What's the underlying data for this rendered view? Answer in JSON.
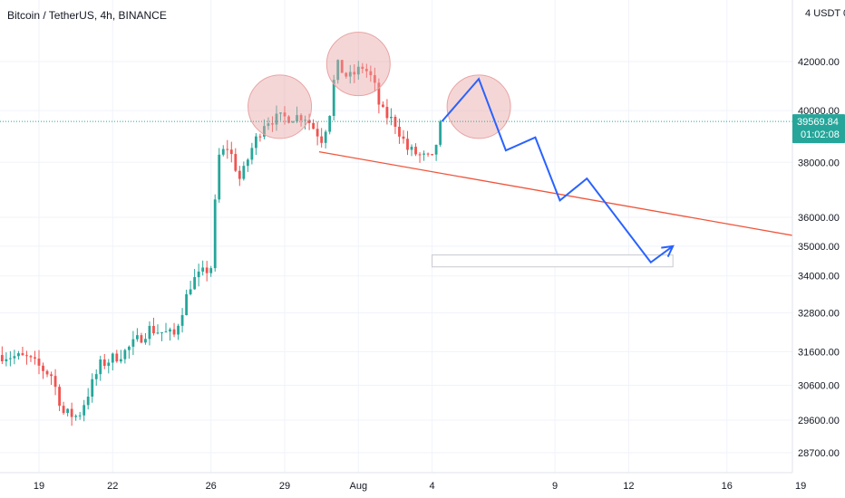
{
  "header": {
    "symbol_title": "Bitcoin / TetherUS, 4h, BINANCE",
    "currency_label": "USDT"
  },
  "price_tag": {
    "last_price": "39569.84",
    "countdown": "01:02:08"
  },
  "colors": {
    "bull": "#26a69a",
    "bear": "#ef5350",
    "trendline": "#f0553b",
    "projection": "#2962ff",
    "highlight": "#e8a3a3",
    "grid": "#f0f3fa"
  },
  "chart_data": {
    "type": "candlestick",
    "title": "Bitcoin / TetherUS, 4h, BINANCE",
    "y_ticks": [
      {
        "value": 42000,
        "label": "42000.00"
      },
      {
        "value": 40000,
        "label": "40000.00"
      },
      {
        "value": 38000,
        "label": "38000.00"
      },
      {
        "value": 36000,
        "label": "36000.00"
      },
      {
        "value": 35000,
        "label": "35000.00"
      },
      {
        "value": 34000,
        "label": "34000.00"
      },
      {
        "value": 32800,
        "label": "32800.00"
      },
      {
        "value": 31600,
        "label": "31600.00"
      },
      {
        "value": 30600,
        "label": "30600.00"
      },
      {
        "value": 29600,
        "label": "29600.00"
      },
      {
        "value": 28700,
        "label": "28700.00"
      }
    ],
    "x_ticks": [
      {
        "day": 19,
        "label": "19"
      },
      {
        "day": 22,
        "label": "22"
      },
      {
        "day": 26,
        "label": "26"
      },
      {
        "day": 29,
        "label": "29"
      },
      {
        "day": 32,
        "label": "Aug"
      },
      {
        "day": 35,
        "label": "4"
      },
      {
        "day": 40,
        "label": "9"
      },
      {
        "day": 43,
        "label": "12"
      },
      {
        "day": 47,
        "label": "16"
      },
      {
        "day": 50,
        "label": "19"
      }
    ],
    "anchors": [
      {
        "day": 17.5,
        "price": 31500
      },
      {
        "day": 18.5,
        "price": 31400
      },
      {
        "day": 19.5,
        "price": 30900
      },
      {
        "day": 20.0,
        "price": 29800
      },
      {
        "day": 20.6,
        "price": 29700
      },
      {
        "day": 21.5,
        "price": 31200
      },
      {
        "day": 22.5,
        "price": 31600
      },
      {
        "day": 23.5,
        "price": 32300
      },
      {
        "day": 24.5,
        "price": 32100
      },
      {
        "day": 25.2,
        "price": 33800
      },
      {
        "day": 26.0,
        "price": 34300
      },
      {
        "day": 26.1,
        "price": 35600
      },
      {
        "day": 26.3,
        "price": 38200
      },
      {
        "day": 26.7,
        "price": 38600
      },
      {
        "day": 27.2,
        "price": 37300
      },
      {
        "day": 27.6,
        "price": 38400
      },
      {
        "day": 28.2,
        "price": 39600
      },
      {
        "day": 28.8,
        "price": 39700
      },
      {
        "day": 29.8,
        "price": 39800
      },
      {
        "day": 30.5,
        "price": 38900
      },
      {
        "day": 30.8,
        "price": 39700
      },
      {
        "day": 31.1,
        "price": 41900
      },
      {
        "day": 31.6,
        "price": 41300
      },
      {
        "day": 32.2,
        "price": 41800
      },
      {
        "day": 32.6,
        "price": 41200
      },
      {
        "day": 32.9,
        "price": 40000
      },
      {
        "day": 33.5,
        "price": 39500
      },
      {
        "day": 34.0,
        "price": 38500
      },
      {
        "day": 34.6,
        "price": 38200
      },
      {
        "day": 35.0,
        "price": 38100
      },
      {
        "day": 35.4,
        "price": 39570
      }
    ],
    "last_price": 39569.84,
    "trendline": [
      {
        "day": 30.4,
        "price": 38400
      },
      {
        "day": 51.0,
        "price": 35170
      }
    ],
    "projection_path": [
      {
        "day": 35.4,
        "price": 39570
      },
      {
        "day": 36.9,
        "price": 41280
      },
      {
        "day": 38.0,
        "price": 38450
      },
      {
        "day": 39.2,
        "price": 38950
      },
      {
        "day": 40.2,
        "price": 36600
      },
      {
        "day": 41.3,
        "price": 37400
      },
      {
        "day": 43.9,
        "price": 34450
      },
      {
        "day": 44.8,
        "price": 35000
      }
    ],
    "target_zone": {
      "day_from": 35.0,
      "day_to": 44.8,
      "price_high": 34700,
      "price_low": 34300
    },
    "highlight_circles": [
      {
        "day": 28.8,
        "price": 40150
      },
      {
        "day": 32.0,
        "price": 41900
      },
      {
        "day": 36.9,
        "price": 40150
      }
    ]
  }
}
